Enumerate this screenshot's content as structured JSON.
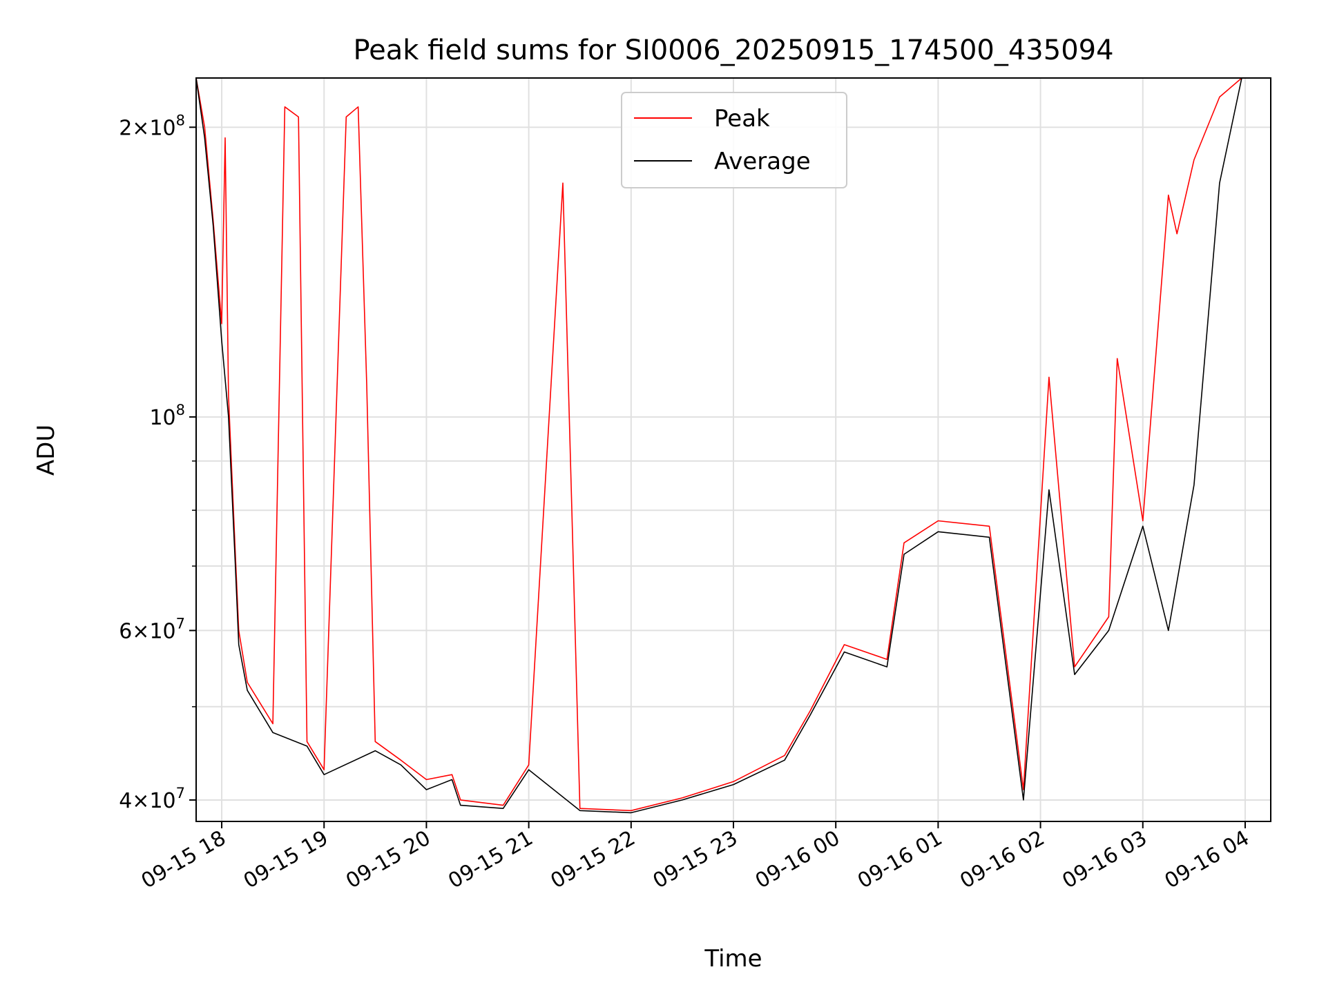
{
  "chart_data": {
    "type": "line",
    "title": "Peak field sums for SI0006_20250915_174500_435094",
    "xlabel": "Time",
    "ylabel": "ADU",
    "yscale": "log",
    "ylim": [
      38000000,
      225000000
    ],
    "xlim": [
      "2025-09-15 17:45",
      "2025-09-16 04:15"
    ],
    "grid": true,
    "legend_position": "top-center",
    "x_tick_labels": [
      "09-15 18",
      "09-15 19",
      "09-15 20",
      "09-15 21",
      "09-15 22",
      "09-15 23",
      "09-16 00",
      "09-16 01",
      "09-16 02",
      "09-16 03",
      "09-16 04"
    ],
    "y_tick_labels": [
      {
        "value": 40000000,
        "mantissa": "4",
        "exp": "7"
      },
      {
        "value": 60000000,
        "mantissa": "6",
        "exp": "7"
      },
      {
        "value": 100000000,
        "mantissa": "",
        "exp": "8"
      },
      {
        "value": 200000000,
        "mantissa": "2",
        "exp": "8"
      }
    ],
    "series": [
      {
        "name": "Peak",
        "color": "#ff0000",
        "points": [
          [
            "2025-09-15 17:45",
            225000000
          ],
          [
            "2025-09-15 17:50",
            200000000
          ],
          [
            "2025-09-15 17:55",
            160000000
          ],
          [
            "2025-09-15 18:00",
            125000000
          ],
          [
            "2025-09-15 18:02",
            195000000
          ],
          [
            "2025-09-15 18:04",
            105000000
          ],
          [
            "2025-09-15 18:08",
            72000000
          ],
          [
            "2025-09-15 18:10",
            60000000
          ],
          [
            "2025-09-15 18:15",
            53000000
          ],
          [
            "2025-09-15 18:30",
            48000000
          ],
          [
            "2025-09-15 18:37",
            210000000
          ],
          [
            "2025-09-15 18:45",
            205000000
          ],
          [
            "2025-09-15 18:50",
            46000000
          ],
          [
            "2025-09-15 19:00",
            43000000
          ],
          [
            "2025-09-15 19:13",
            205000000
          ],
          [
            "2025-09-15 19:20",
            210000000
          ],
          [
            "2025-09-15 19:25",
            108000000
          ],
          [
            "2025-09-15 19:30",
            46000000
          ],
          [
            "2025-09-15 19:45",
            44000000
          ],
          [
            "2025-09-15 20:00",
            42000000
          ],
          [
            "2025-09-15 20:15",
            42500000
          ],
          [
            "2025-09-15 20:20",
            40000000
          ],
          [
            "2025-09-15 20:45",
            39500000
          ],
          [
            "2025-09-15 21:00",
            43500000
          ],
          [
            "2025-09-15 21:20",
            175000000
          ],
          [
            "2025-09-15 21:25",
            83000000
          ],
          [
            "2025-09-15 21:30",
            39200000
          ],
          [
            "2025-09-15 22:00",
            39000000
          ],
          [
            "2025-09-15 22:30",
            40200000
          ],
          [
            "2025-09-15 23:00",
            41800000
          ],
          [
            "2025-09-15 23:30",
            44500000
          ],
          [
            "2025-09-15 23:45",
            49500000
          ],
          [
            "2025-09-16 00:05",
            58000000
          ],
          [
            "2025-09-16 00:30",
            56000000
          ],
          [
            "2025-09-16 00:40",
            74000000
          ],
          [
            "2025-09-16 01:00",
            78000000
          ],
          [
            "2025-09-16 01:30",
            77000000
          ],
          [
            "2025-09-16 01:50",
            41000000
          ],
          [
            "2025-09-16 02:05",
            110000000
          ],
          [
            "2025-09-16 02:20",
            55000000
          ],
          [
            "2025-09-16 02:40",
            62000000
          ],
          [
            "2025-09-16 02:45",
            115000000
          ],
          [
            "2025-09-16 03:00",
            78000000
          ],
          [
            "2025-09-16 03:15",
            170000000
          ],
          [
            "2025-09-16 03:20",
            155000000
          ],
          [
            "2025-09-16 03:30",
            185000000
          ],
          [
            "2025-09-16 03:45",
            215000000
          ],
          [
            "2025-09-16 03:58",
            225000000
          ]
        ]
      },
      {
        "name": "Average",
        "color": "#000000",
        "points": [
          [
            "2025-09-15 17:45",
            225000000
          ],
          [
            "2025-09-15 17:50",
            195000000
          ],
          [
            "2025-09-15 17:55",
            158000000
          ],
          [
            "2025-09-15 18:00",
            120000000
          ],
          [
            "2025-09-15 18:04",
            100000000
          ],
          [
            "2025-09-15 18:08",
            70000000
          ],
          [
            "2025-09-15 18:10",
            58000000
          ],
          [
            "2025-09-15 18:15",
            52000000
          ],
          [
            "2025-09-15 18:30",
            47000000
          ],
          [
            "2025-09-15 18:50",
            45500000
          ],
          [
            "2025-09-15 19:00",
            42500000
          ],
          [
            "2025-09-15 19:30",
            45000000
          ],
          [
            "2025-09-15 19:45",
            43500000
          ],
          [
            "2025-09-15 20:00",
            41000000
          ],
          [
            "2025-09-15 20:15",
            42000000
          ],
          [
            "2025-09-15 20:20",
            39500000
          ],
          [
            "2025-09-15 20:45",
            39200000
          ],
          [
            "2025-09-15 21:00",
            43000000
          ],
          [
            "2025-09-15 21:30",
            39000000
          ],
          [
            "2025-09-15 22:00",
            38800000
          ],
          [
            "2025-09-15 22:30",
            40000000
          ],
          [
            "2025-09-15 23:00",
            41500000
          ],
          [
            "2025-09-15 23:30",
            44000000
          ],
          [
            "2025-09-15 23:45",
            49000000
          ],
          [
            "2025-09-16 00:05",
            57000000
          ],
          [
            "2025-09-16 00:30",
            55000000
          ],
          [
            "2025-09-16 00:40",
            72000000
          ],
          [
            "2025-09-16 01:00",
            76000000
          ],
          [
            "2025-09-16 01:30",
            75000000
          ],
          [
            "2025-09-16 01:50",
            40000000
          ],
          [
            "2025-09-16 02:05",
            84000000
          ],
          [
            "2025-09-16 02:20",
            54000000
          ],
          [
            "2025-09-16 02:40",
            60000000
          ],
          [
            "2025-09-16 03:00",
            77000000
          ],
          [
            "2025-09-16 03:15",
            60000000
          ],
          [
            "2025-09-16 03:30",
            85000000
          ],
          [
            "2025-09-16 03:45",
            175000000
          ],
          [
            "2025-09-16 03:58",
            225000000
          ]
        ]
      }
    ]
  }
}
